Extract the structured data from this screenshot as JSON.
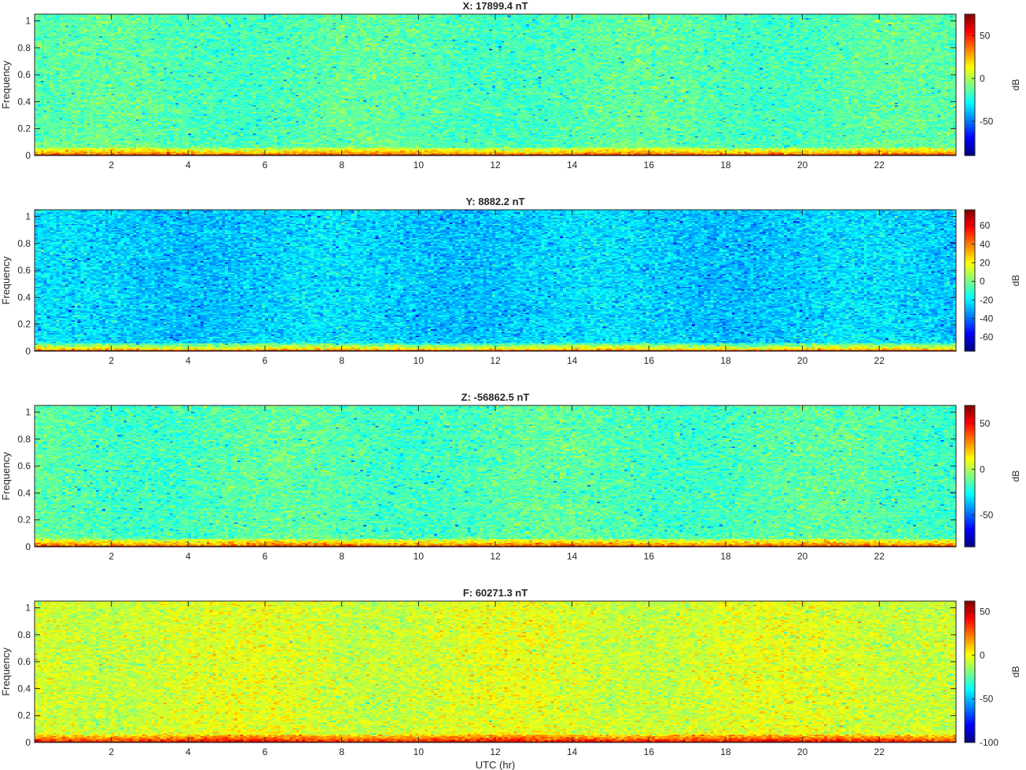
{
  "chart_data": [
    {
      "type": "heatmap",
      "title": "X: 17899.4 nT",
      "ylabel": "Frequency",
      "xlabel": "",
      "xlim": [
        0,
        24
      ],
      "ylim": [
        0,
        1.05
      ],
      "xticks": [
        2,
        4,
        6,
        8,
        10,
        12,
        14,
        16,
        18,
        20,
        22
      ],
      "yticks": [
        0,
        0.2,
        0.4,
        0.6,
        0.8,
        1
      ],
      "colorbar": {
        "label": "dB",
        "range": [
          -90,
          75
        ],
        "ticks": [
          -50,
          0,
          50
        ]
      },
      "background_level_db": -15,
      "low_frequency_band_db": 30,
      "zero_frequency_db": 75
    },
    {
      "type": "heatmap",
      "title": "Y: 8882.2 nT",
      "ylabel": "Frequency",
      "xlabel": "",
      "xlim": [
        0,
        24
      ],
      "ylim": [
        0,
        1.05
      ],
      "xticks": [
        2,
        4,
        6,
        8,
        10,
        12,
        14,
        16,
        18,
        20,
        22
      ],
      "yticks": [
        0,
        0.2,
        0.4,
        0.6,
        0.8,
        1
      ],
      "colorbar": {
        "label": "dB",
        "range": [
          -75,
          77
        ],
        "ticks": [
          -60,
          -40,
          -20,
          0,
          20,
          40,
          60
        ]
      },
      "background_level_db": -25,
      "low_frequency_band_db": 25,
      "zero_frequency_db": 75
    },
    {
      "type": "heatmap",
      "title": "Z: -56862.5 nT",
      "ylabel": "Frequency",
      "xlabel": "",
      "xlim": [
        0,
        24
      ],
      "ylim": [
        0,
        1.05
      ],
      "xticks": [
        2,
        4,
        6,
        8,
        10,
        12,
        14,
        16,
        18,
        20,
        22
      ],
      "yticks": [
        0,
        0.2,
        0.4,
        0.6,
        0.8,
        1
      ],
      "colorbar": {
        "label": "dB",
        "range": [
          -85,
          70
        ],
        "ticks": [
          -50,
          0,
          50
        ]
      },
      "background_level_db": -15,
      "low_frequency_band_db": 30,
      "zero_frequency_db": 70
    },
    {
      "type": "heatmap",
      "title": "F: 60271.3 nT",
      "ylabel": "Frequency",
      "xlabel": "UTC (hr)",
      "xlim": [
        0,
        24
      ],
      "ylim": [
        0,
        1.05
      ],
      "xticks": [
        2,
        4,
        6,
        8,
        10,
        12,
        14,
        16,
        18,
        20,
        22
      ],
      "yticks": [
        0,
        0.2,
        0.4,
        0.6,
        0.8,
        1
      ],
      "colorbar": {
        "label": "dB",
        "range": [
          -100,
          62
        ],
        "ticks": [
          -100,
          -50,
          0,
          50
        ]
      },
      "background_level_db": -5,
      "low_frequency_band_db": 35,
      "zero_frequency_db": 60
    }
  ]
}
